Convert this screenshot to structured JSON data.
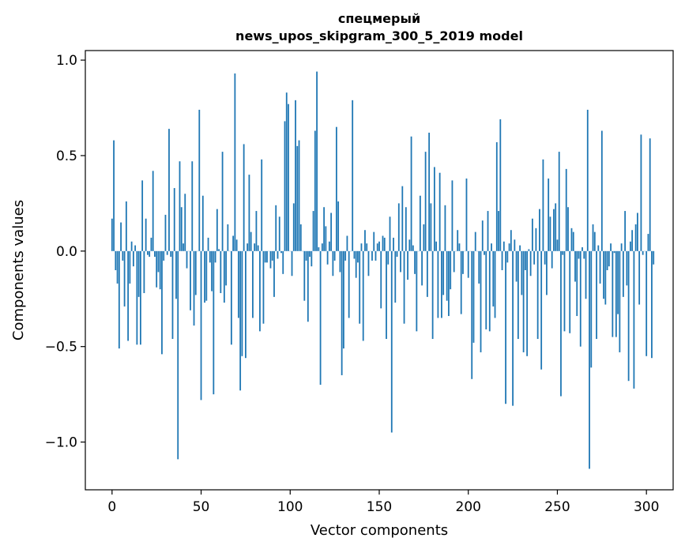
{
  "chart_data": {
    "type": "bar",
    "title_line1": "спецмерый",
    "title_line2": "news_upos_skipgram_300_5_2019 model",
    "xlabel": "Vector components",
    "ylabel": "Components values",
    "xlim": [
      -15,
      315
    ],
    "ylim": [
      -1.25,
      1.05
    ],
    "xticks": [
      0,
      50,
      100,
      150,
      200,
      250,
      300
    ],
    "xtick_labels": [
      "0",
      "50",
      "100",
      "150",
      "200",
      "250",
      "300"
    ],
    "yticks": [
      -1.0,
      -0.5,
      0.0,
      0.5,
      1.0
    ],
    "ytick_labels": [
      "−1.0",
      "−0.5",
      "0.0",
      "0.5",
      "1.0"
    ],
    "grid": false,
    "bar_color": "#1f77b4",
    "values": [
      0.17,
      0.58,
      -0.1,
      -0.17,
      -0.51,
      0.15,
      -0.05,
      -0.29,
      0.26,
      -0.47,
      -0.17,
      0.05,
      -0.08,
      0.03,
      -0.49,
      -0.24,
      -0.49,
      0.37,
      -0.22,
      0.17,
      -0.02,
      -0.03,
      0.07,
      0.42,
      -0.03,
      -0.19,
      -0.11,
      -0.2,
      -0.54,
      -0.05,
      0.19,
      -0.02,
      0.64,
      -0.03,
      -0.46,
      0.33,
      -0.25,
      -1.09,
      0.47,
      0.23,
      0.04,
      0.3,
      -0.09,
      0.0,
      -0.31,
      0.47,
      -0.39,
      -0.23,
      0.0,
      0.74,
      -0.78,
      0.29,
      -0.27,
      -0.26,
      0.07,
      -0.06,
      -0.21,
      -0.75,
      -0.06,
      0.22,
      0.01,
      -0.22,
      0.52,
      -0.27,
      -0.18,
      0.14,
      0.0,
      -0.49,
      0.08,
      0.93,
      0.06,
      -0.35,
      -0.73,
      -0.55,
      0.56,
      -0.56,
      0.04,
      0.4,
      0.1,
      -0.35,
      0.04,
      0.21,
      0.03,
      -0.42,
      0.48,
      -0.38,
      -0.06,
      -0.06,
      0.0,
      -0.09,
      -0.05,
      -0.24,
      0.24,
      -0.04,
      0.18,
      -0.01,
      -0.12,
      0.68,
      0.83,
      0.77,
      0.0,
      -0.13,
      0.25,
      0.79,
      0.55,
      0.58,
      0.14,
      0.0,
      -0.26,
      -0.05,
      -0.37,
      -0.03,
      -0.08,
      0.21,
      0.63,
      0.94,
      0.02,
      -0.7,
      0.04,
      0.23,
      0.13,
      -0.07,
      0.05,
      0.2,
      -0.13,
      -0.05,
      0.65,
      0.26,
      -0.11,
      -0.65,
      -0.51,
      -0.05,
      0.08,
      -0.35,
      0.0,
      0.79,
      -0.04,
      -0.14,
      -0.06,
      -0.38,
      0.04,
      -0.47,
      0.11,
      0.04,
      -0.13,
      0.0,
      -0.05,
      0.1,
      -0.05,
      0.04,
      0.05,
      -0.3,
      0.08,
      0.07,
      -0.46,
      -0.07,
      0.18,
      -0.95,
      0.07,
      -0.27,
      -0.03,
      0.25,
      -0.11,
      0.34,
      -0.38,
      0.23,
      -0.15,
      0.06,
      0.6,
      0.03,
      -0.12,
      -0.42,
      0.0,
      0.29,
      -0.18,
      0.14,
      0.52,
      -0.24,
      0.62,
      0.25,
      -0.46,
      0.44,
      0.05,
      -0.35,
      0.41,
      -0.35,
      -0.23,
      0.24,
      -0.26,
      -0.34,
      -0.2,
      0.37,
      -0.11,
      0.0,
      0.11,
      0.04,
      -0.33,
      -0.12,
      0.0,
      0.38,
      -0.14,
      0.0,
      -0.67,
      -0.48,
      0.1,
      0.0,
      -0.17,
      -0.53,
      0.16,
      -0.02,
      -0.41,
      0.21,
      -0.42,
      0.04,
      -0.29,
      -0.35,
      0.57,
      0.21,
      0.69,
      -0.1,
      0.05,
      -0.8,
      -0.06,
      0.04,
      0.11,
      -0.81,
      0.06,
      -0.16,
      -0.46,
      0.03,
      -0.23,
      -0.53,
      -0.1,
      -0.55,
      0.01,
      -0.13,
      0.17,
      -0.07,
      0.12,
      -0.46,
      0.22,
      -0.62,
      0.48,
      -0.07,
      -0.23,
      0.38,
      0.18,
      -0.09,
      0.22,
      0.25,
      0.06,
      0.52,
      -0.76,
      -0.02,
      -0.42,
      0.43,
      0.23,
      -0.43,
      0.12,
      0.1,
      -0.16,
      -0.34,
      -0.04,
      -0.5,
      0.02,
      -0.04,
      -0.25,
      0.74,
      -1.14,
      -0.61,
      0.14,
      0.1,
      -0.46,
      0.03,
      -0.17,
      0.63,
      -0.25,
      -0.28,
      -0.1,
      -0.08,
      0.04,
      -0.45,
      -0.01,
      -0.45,
      -0.33,
      -0.53,
      0.04,
      -0.24,
      0.21,
      -0.18,
      -0.68,
      0.05,
      0.11,
      -0.72,
      0.14,
      0.2,
      -0.28,
      0.61,
      -0.02,
      0.0,
      -0.55,
      0.09,
      0.59,
      -0.56,
      -0.07
    ]
  }
}
